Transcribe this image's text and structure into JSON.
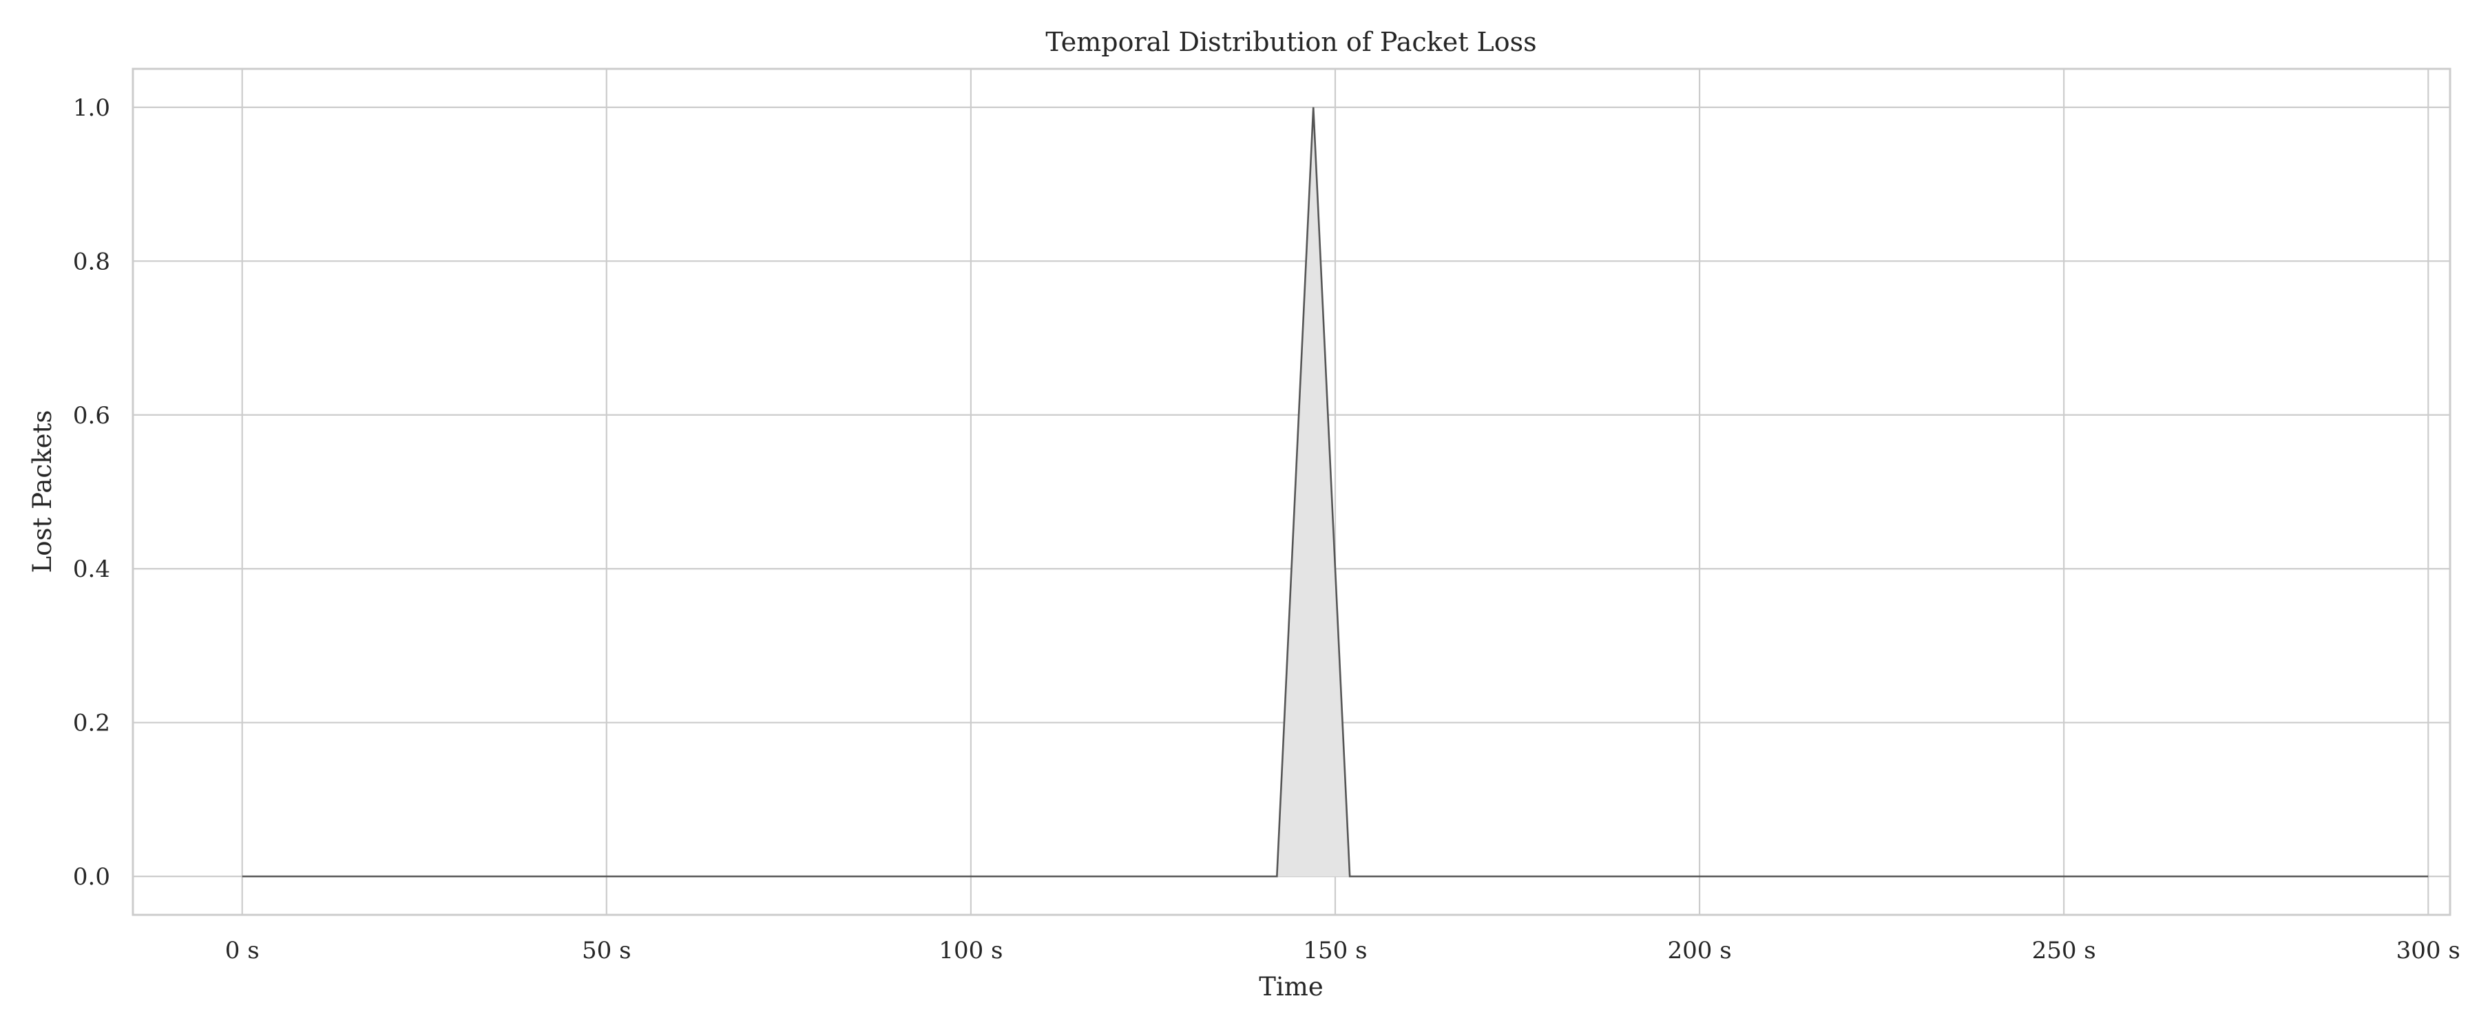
{
  "chart_data": {
    "type": "area",
    "title": "Temporal Distribution of Packet Loss",
    "xlabel": "Time",
    "ylabel": "Lost Packets",
    "xlim": [
      -15,
      303
    ],
    "ylim": [
      -0.05,
      1.05
    ],
    "x_ticks": [
      0,
      50,
      100,
      150,
      200,
      250,
      300
    ],
    "x_tick_labels": [
      "0 s",
      "50 s",
      "100 s",
      "150 s",
      "200 s",
      "250 s",
      "300 s"
    ],
    "y_ticks": [
      0.0,
      0.2,
      0.4,
      0.6,
      0.8,
      1.0
    ],
    "y_tick_labels": [
      "0.0",
      "0.2",
      "0.4",
      "0.6",
      "0.8",
      "1.0"
    ],
    "grid": true,
    "series": [
      {
        "x": [
          0,
          142,
          147,
          152,
          300
        ],
        "y": [
          0,
          0,
          1,
          0,
          0
        ]
      }
    ],
    "colors": {
      "line": "#555555",
      "fill": "#e4e4e4",
      "grid": "#cccccc",
      "frame": "#cccccc"
    }
  }
}
